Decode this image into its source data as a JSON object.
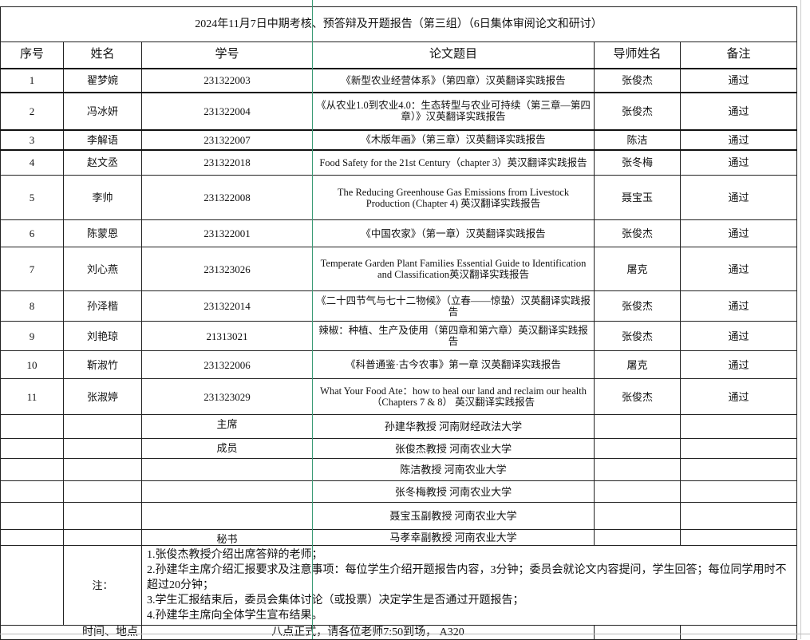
{
  "title": "2024年11月7日中期考核、预答辩及开题报告（第三组）（6日集体审阅论文和研讨）",
  "headers": [
    "序号",
    "姓名",
    "学号",
    "论文题目",
    "导师姓名",
    "备注"
  ],
  "rows": [
    {
      "no": "1",
      "name": "翟梦婉",
      "id": "231322003",
      "thesis": "《新型农业经营体系》（第四章）汉英翻译实践报告",
      "advisor": "张俊杰",
      "note": "通过"
    },
    {
      "no": "2",
      "name": "冯冰妍",
      "id": "231322004",
      "thesis": "《从农业1.0到农业4.0：生态转型与农业可持续（第三章—第四章）》汉英翻译实践报告",
      "advisor": "张俊杰",
      "note": "通过"
    },
    {
      "no": "3",
      "name": "李解语",
      "id": "231322007",
      "thesis": "《木版年画》（第三章）汉英翻译实践报告",
      "advisor": "陈洁",
      "note": "通过"
    },
    {
      "no": "4",
      "name": "赵文丞",
      "id": "231322018",
      "thesis": "Food Safety for the 21st Century（chapter 3）英汉翻译实践报告",
      "advisor": "张冬梅",
      "note": "通过"
    },
    {
      "no": "5",
      "name": "李帅",
      "id": "231322008",
      "thesis": "The Reducing Greenhouse Gas Emissions from Livestock Production (Chapter 4) 英汉翻译实践报告",
      "advisor": "聂宝玉",
      "note": "通过"
    },
    {
      "no": "6",
      "name": "陈蒙恩",
      "id": "231322001",
      "thesis": "《中国农家》（第一章）汉英翻译实践报告",
      "advisor": "张俊杰",
      "note": "通过"
    },
    {
      "no": "7",
      "name": "刘心燕",
      "id": "231323026",
      "thesis": "Temperate Garden Plant Families Essential Guide to Identification and Classification英汉翻译实践报告",
      "advisor": "屠克",
      "note": "通过"
    },
    {
      "no": "8",
      "name": "孙泽楷",
      "id": "231322014",
      "thesis": "《二十四节气与七十二物候》（立春——惊蛰）汉英翻译实践报告",
      "advisor": "张俊杰",
      "note": "通过"
    },
    {
      "no": "9",
      "name": "刘艳琼",
      "id": "21313021",
      "thesis": "辣椒：种植、生产及使用（第四章和第六章）英汉翻译实践报告",
      "advisor": "张俊杰",
      "note": "通过"
    },
    {
      "no": "10",
      "name": "靳淑竹",
      "id": "231322006",
      "thesis": "《科普通鉴·古今农事》第一章 汉英翻译实践报告",
      "advisor": "屠克",
      "note": "通过"
    },
    {
      "no": "11",
      "name": "张淑婷",
      "id": "231323029",
      "thesis": "What Your Food Ate：how to heal our land and reclaim our health（Chapters 7 & 8） 英汉翻译实践报告",
      "advisor": "张俊杰",
      "note": "通过"
    }
  ],
  "committee": [
    {
      "role": "主席",
      "member": "孙建华教授 河南财经政法大学"
    },
    {
      "role": "成员",
      "member": "张俊杰教授 河南农业大学"
    },
    {
      "role": "",
      "member": "陈洁教授 河南农业大学"
    },
    {
      "role": "",
      "member": "张冬梅教授 河南农业大学"
    },
    {
      "role": "",
      "member": "聂宝玉副教授 河南农业大学"
    },
    {
      "role": "秘书",
      "member": "马孝幸副教授 河南农业大学"
    }
  ],
  "notes": {
    "label": "注：",
    "items": [
      "1.张俊杰教授介绍出席答辩的老师；",
      "2.孙建华主席介绍汇报要求及注意事项：每位学生介绍开题报告内容，3分钟；委员会就论文内容提问，学生回答；每位同学用时不超过20分钟；",
      "3.学生汇报结束后，委员会集体讨论（或投票）决定学生是否通过开题报告；",
      "4.孙建华主席向全体学生宣布结果。"
    ]
  },
  "time_place": {
    "label": "时间、地点",
    "value": "八点正式，请各位老师7:50到场， A320"
  },
  "colors": {
    "freeze_line": "#3a9a74",
    "border": "#222222"
  }
}
